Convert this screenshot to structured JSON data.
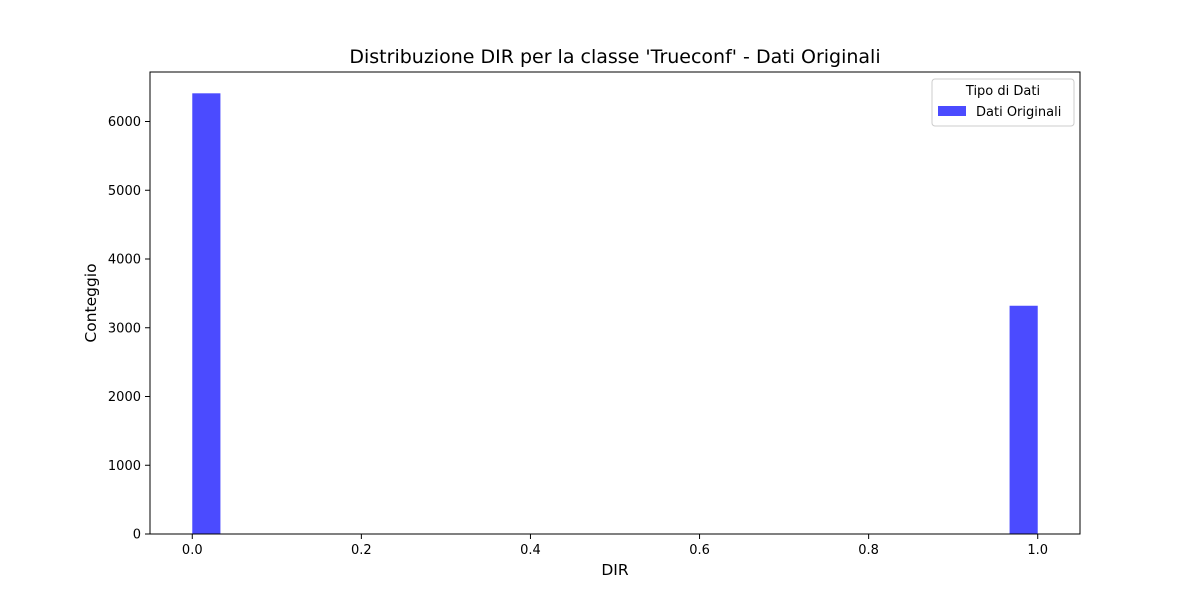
{
  "chart_data": {
    "type": "bar",
    "title": "Distribuzione DIR per la classe 'Trueconf' - Dati Originali",
    "xlabel": "DIR",
    "ylabel": "Conteggio",
    "xlim": [
      -0.05,
      1.05
    ],
    "ylim": [
      0,
      6720
    ],
    "xticks": [
      0.0,
      0.2,
      0.4,
      0.6,
      0.8,
      1.0
    ],
    "xtick_labels": [
      "0.0",
      "0.2",
      "0.4",
      "0.6",
      "0.8",
      "1.0"
    ],
    "yticks": [
      0,
      1000,
      2000,
      3000,
      4000,
      5000,
      6000
    ],
    "ytick_labels": [
      "0",
      "1000",
      "2000",
      "3000",
      "4000",
      "5000",
      "6000"
    ],
    "grid": false,
    "legend": {
      "title": "Tipo di Dati",
      "placement": "top-right",
      "entries": [
        "Dati Originali"
      ]
    },
    "series": [
      {
        "name": "Dati Originali",
        "color": "#4b4bff",
        "bins": [
          {
            "x0": 0.0,
            "x1": 0.0333,
            "value": 6410
          },
          {
            "x0": 0.9667,
            "x1": 1.0,
            "value": 3320
          }
        ]
      }
    ]
  }
}
